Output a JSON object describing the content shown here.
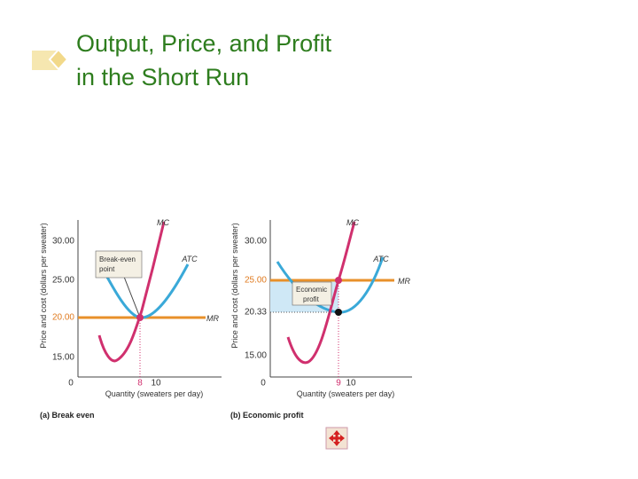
{
  "title": [
    "Output, Price, and Profit",
    "in the Short Run"
  ],
  "panels": [
    {
      "y_label": "Price and cost (dollars per sweater)",
      "x_label": "Quantity (sweaters per day)",
      "y_ticks": [
        "30.00",
        "25.00",
        "20.00",
        "15.00"
      ],
      "x_ticks": [
        "0",
        "8",
        "10"
      ],
      "curves": [
        "MC",
        "ATC",
        "MR"
      ],
      "annotation": [
        "Break-even",
        "point"
      ],
      "caption": [
        "(a)",
        "Break even"
      ]
    },
    {
      "y_label": "Price and cost (dollars per sweater)",
      "x_label": "Quantity (sweaters per day)",
      "y_ticks": [
        "30.00",
        "25.00",
        "20.33",
        "15.00"
      ],
      "x_ticks": [
        "0",
        "9",
        "10"
      ],
      "curves": [
        "MC",
        "ATC",
        "MR"
      ],
      "annotation": [
        "Economic",
        "profit"
      ],
      "caption": [
        "(b)",
        "Economic profit"
      ]
    }
  ]
}
